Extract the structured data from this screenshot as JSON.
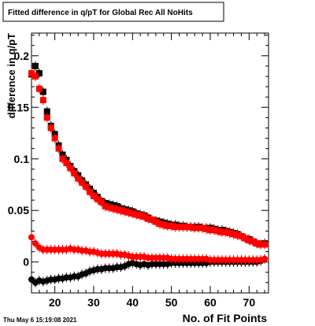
{
  "chart_data": {
    "type": "scatter",
    "title": "Fitted difference in q/pT for Global Rec All NoHits",
    "xlabel": "No. of Fit Points",
    "ylabel": "difference in q/pT",
    "footer": "Thu May  6 15:19:08 2021",
    "xlim": [
      14,
      75
    ],
    "ylim": [
      -0.03,
      0.222
    ],
    "x_ticks": [
      20,
      30,
      40,
      50,
      60,
      70
    ],
    "x_tick_labels": [
      "20",
      "30",
      "40",
      "50",
      "60",
      "70"
    ],
    "y_ticks": [
      0,
      0.05,
      0.1,
      0.15,
      0.2
    ],
    "y_tick_labels": [
      "0",
      "0.05",
      "0.1",
      "0.15",
      "0.2"
    ],
    "grid": false,
    "legend": "none",
    "series": [
      {
        "color": "#000000",
        "marker": "square",
        "x": [
          14,
          15,
          16,
          17,
          18,
          19,
          20,
          21,
          22,
          23,
          24,
          25,
          26,
          27,
          28,
          29,
          30,
          31,
          32,
          33,
          34,
          35,
          36,
          37,
          38,
          39,
          40,
          41,
          42,
          43,
          44,
          45,
          46,
          47,
          48,
          49,
          50,
          51,
          52,
          53,
          54,
          55,
          56,
          57,
          58,
          59,
          60,
          61,
          62,
          63,
          64,
          65,
          66,
          67,
          68,
          69,
          70,
          71,
          72,
          73,
          74
        ],
        "values": [
          0.182,
          0.19,
          0.183,
          0.165,
          0.146,
          0.132,
          0.124,
          0.113,
          0.104,
          0.099,
          0.093,
          0.088,
          0.084,
          0.079,
          0.075,
          0.071,
          0.067,
          0.063,
          0.059,
          0.057,
          0.056,
          0.055,
          0.054,
          0.052,
          0.051,
          0.05,
          0.049,
          0.047,
          0.046,
          0.045,
          0.043,
          0.041,
          0.04,
          0.039,
          0.038,
          0.037,
          0.036,
          0.036,
          0.035,
          0.035,
          0.034,
          0.034,
          0.034,
          0.034,
          0.033,
          0.033,
          0.033,
          0.032,
          0.031,
          0.031,
          0.03,
          0.029,
          0.028,
          0.027,
          0.025,
          0.023,
          0.022,
          0.02,
          0.018,
          0.017,
          0.018
        ]
      },
      {
        "color": "#000000",
        "marker": "circle",
        "x": [
          14,
          15,
          16,
          17,
          18,
          19,
          20,
          21,
          22,
          23,
          24,
          25,
          26,
          27,
          28,
          29,
          30,
          31,
          32,
          33,
          34,
          35,
          36,
          37,
          38,
          39,
          40,
          41,
          42,
          43,
          44,
          45,
          46,
          47,
          48,
          49,
          50,
          51,
          52,
          53,
          54,
          55,
          56,
          57,
          58,
          59,
          60,
          61,
          62,
          63,
          64,
          65,
          66,
          67,
          68,
          69,
          70,
          71,
          72,
          73,
          74
        ],
        "values": [
          -0.017,
          -0.02,
          -0.018,
          -0.019,
          -0.018,
          -0.017,
          -0.017,
          -0.016,
          -0.016,
          -0.015,
          -0.015,
          -0.014,
          -0.014,
          -0.012,
          -0.011,
          -0.009,
          -0.008,
          -0.007,
          -0.007,
          -0.006,
          -0.006,
          -0.006,
          -0.005,
          -0.005,
          -0.004,
          -0.002,
          -0.001,
          -0.002,
          -0.003,
          -0.002,
          -0.003,
          -0.002,
          -0.002,
          -0.002,
          -0.002,
          -0.002,
          -0.001,
          -0.001,
          -0.001,
          -0.001,
          -0.001,
          -0.001,
          -0.001,
          -0.001,
          -0.001,
          -0.001,
          0,
          0,
          0,
          0,
          0,
          0,
          0,
          0,
          0,
          0,
          0,
          0,
          0,
          0.001,
          0.003
        ]
      },
      {
        "color": "#ff0000",
        "marker": "square",
        "x": [
          14,
          15,
          16,
          17,
          18,
          19,
          20,
          21,
          22,
          23,
          24,
          25,
          26,
          27,
          28,
          29,
          30,
          31,
          32,
          33,
          34,
          35,
          36,
          37,
          38,
          39,
          40,
          41,
          42,
          43,
          44,
          45,
          46,
          47,
          48,
          49,
          50,
          51,
          52,
          53,
          54,
          55,
          56,
          57,
          58,
          59,
          60,
          61,
          62,
          63,
          64,
          65,
          66,
          67,
          68,
          69,
          70,
          71,
          72,
          73,
          74
        ],
        "values": [
          0.183,
          0.18,
          0.168,
          0.157,
          0.14,
          0.13,
          0.12,
          0.11,
          0.1,
          0.096,
          0.091,
          0.086,
          0.081,
          0.077,
          0.073,
          0.068,
          0.064,
          0.061,
          0.058,
          0.054,
          0.053,
          0.052,
          0.051,
          0.05,
          0.049,
          0.048,
          0.047,
          0.046,
          0.045,
          0.044,
          0.042,
          0.041,
          0.039,
          0.037,
          0.036,
          0.035,
          0.035,
          0.034,
          0.034,
          0.034,
          0.034,
          0.034,
          0.033,
          0.033,
          0.033,
          0.032,
          0.031,
          0.031,
          0.03,
          0.029,
          0.029,
          0.028,
          0.027,
          0.026,
          0.025,
          0.023,
          0.021,
          0.02,
          0.018,
          0.017,
          0.017
        ]
      },
      {
        "color": "#ff0000",
        "marker": "circle",
        "x": [
          14,
          15,
          16,
          17,
          18,
          19,
          20,
          21,
          22,
          23,
          24,
          25,
          26,
          27,
          28,
          29,
          30,
          31,
          32,
          33,
          34,
          35,
          36,
          37,
          38,
          39,
          40,
          41,
          42,
          43,
          44,
          45,
          46,
          47,
          48,
          49,
          50,
          51,
          52,
          53,
          54,
          55,
          56,
          57,
          58,
          59,
          60,
          61,
          62,
          63,
          64,
          65,
          66,
          67,
          68,
          69,
          70,
          71,
          72,
          73,
          74
        ],
        "values": [
          0.024,
          0.018,
          0.014,
          0.012,
          0.012,
          0.012,
          0.012,
          0.012,
          0.012,
          0.012,
          0.013,
          0.012,
          0.012,
          0.011,
          0.011,
          0.01,
          0.01,
          0.009,
          0.008,
          0.008,
          0.008,
          0.008,
          0.008,
          0.007,
          0.007,
          0.006,
          0.005,
          0.005,
          0.005,
          0.005,
          0.004,
          0.004,
          0.004,
          0.004,
          0.004,
          0.004,
          0.003,
          0.003,
          0.003,
          0.003,
          0.003,
          0.003,
          0.003,
          0.003,
          0.003,
          0.003,
          0.002,
          0.002,
          0.002,
          0.002,
          0.002,
          0.002,
          0.002,
          0.002,
          0.002,
          0.002,
          0.002,
          0.002,
          0.002,
          0.002,
          0.003
        ]
      }
    ]
  }
}
